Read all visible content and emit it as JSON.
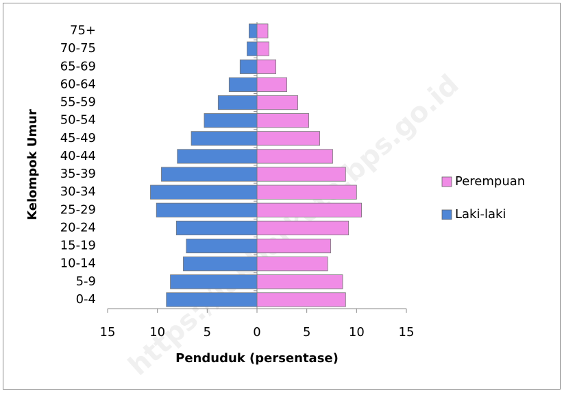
{
  "chart_data": {
    "type": "pyramid",
    "categories": [
      "0-4",
      "5-9",
      "10-14",
      "15-19",
      "20-24",
      "25-29",
      "30-34",
      "35-39",
      "40-44",
      "45-49",
      "50-54",
      "55-59",
      "60-64",
      "65-69",
      "70-75",
      "75+"
    ],
    "series": [
      {
        "name": "Perempuan",
        "color": "#f08ce6",
        "values": [
          8.9,
          8.6,
          7.1,
          7.4,
          9.2,
          10.5,
          10.0,
          8.9,
          7.6,
          6.3,
          5.2,
          4.1,
          3.0,
          1.9,
          1.2,
          1.1
        ]
      },
      {
        "name": "Laki-laki",
        "color": "#4f86d6",
        "values": [
          -9.1,
          -8.7,
          -7.4,
          -7.1,
          -8.1,
          -10.1,
          -10.7,
          -9.6,
          -8.0,
          -6.6,
          -5.3,
          -3.9,
          -2.8,
          -1.7,
          -1.0,
          -0.8
        ]
      }
    ],
    "xlim": [
      -15,
      15
    ],
    "xticks": [
      {
        "value": -15,
        "label": "15"
      },
      {
        "value": -10,
        "label": "10"
      },
      {
        "value": -5,
        "label": "5"
      },
      0,
      5,
      10,
      15
    ],
    "xlabel": "Penduduk (persentase)",
    "ylabel": "Kelompok Umur",
    "legend": "right",
    "watermark": "https://jakbarkota.bps.go.id"
  }
}
